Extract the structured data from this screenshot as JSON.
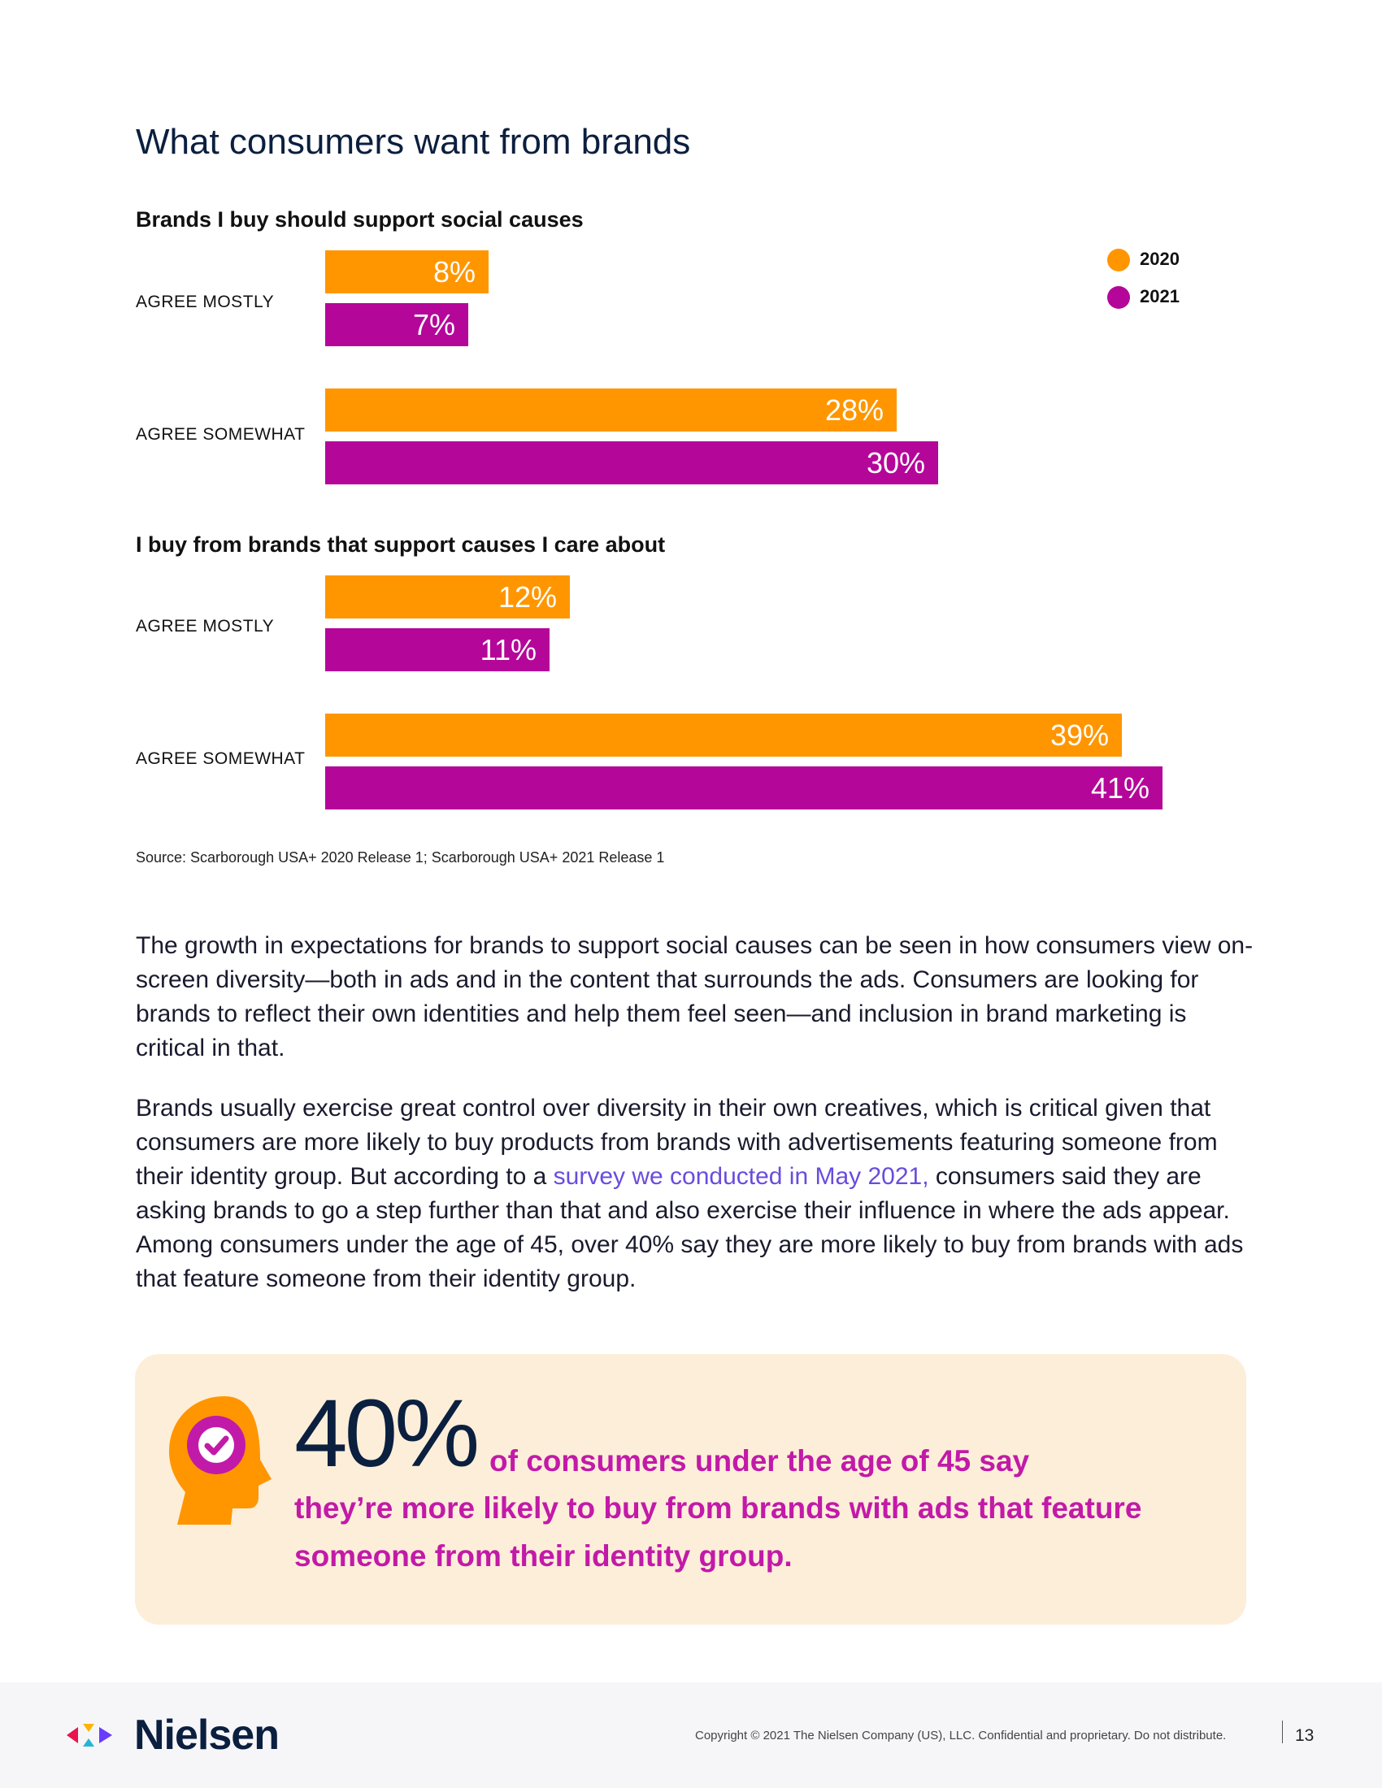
{
  "page": {
    "title": "What consumers want from brands"
  },
  "legend": [
    {
      "label": "2020",
      "color": "#ff9600"
    },
    {
      "label": "2021",
      "color": "#b5069a"
    }
  ],
  "chart_data": [
    {
      "type": "bar",
      "title": "Brands I buy should support social causes",
      "categories": [
        "AGREE MOSTLY",
        "AGREE SOMEWHAT"
      ],
      "series": [
        {
          "name": "2020",
          "values": [
            8,
            28
          ],
          "labels": [
            "8%",
            "28%"
          ]
        },
        {
          "name": "2021",
          "values": [
            7,
            30
          ],
          "labels": [
            "7%",
            "30%"
          ]
        }
      ],
      "orientation": "horizontal",
      "xlim": [
        0,
        41
      ]
    },
    {
      "type": "bar",
      "title": "I buy from brands that support causes I care about",
      "categories": [
        "AGREE MOSTLY",
        "AGREE SOMEWHAT"
      ],
      "series": [
        {
          "name": "2020",
          "values": [
            12,
            39
          ],
          "labels": [
            "12%",
            "39%"
          ]
        },
        {
          "name": "2021",
          "values": [
            11,
            41
          ],
          "labels": [
            "11%",
            "41%"
          ]
        }
      ],
      "orientation": "horizontal",
      "xlim": [
        0,
        41
      ]
    }
  ],
  "source": "Source: Scarborough USA+ 2020 Release 1; Scarborough USA+ 2021 Release 1",
  "paragraphs": {
    "p1": "The growth in expectations for brands to support social causes can be seen in how consumers view on-screen diversity—both in ads and in the content that surrounds the ads. Consumers are looking for brands to reflect their own identities and help them feel seen—and inclusion in brand marketing is critical in that.",
    "p2_before": "Brands usually exercise great control over diversity in their own creatives, which is critical given that consumers are more likely to buy products from brands with advertisements featuring someone from their identity group. But according to a ",
    "p2_link": "survey we conducted in May 2021,",
    "p2_after": " consumers said they are asking brands to go a step further than that and also exercise their influence in where the ads appear. Among consumers under the age of 45, over 40% say they are more likely to buy from brands with ads that feature someone from their identity group."
  },
  "callout": {
    "number": "40%",
    "line1": "of consumers under the age of 45 say",
    "line2": "they’re more likely to buy from brands with ads that feature",
    "line3": "someone from their identity group."
  },
  "footer": {
    "brand": "Nielsen",
    "copyright": "Copyright © 2021 The Nielsen Company (US), LLC. Confidential and proprietary. Do not distribute.",
    "page_number": "13"
  }
}
